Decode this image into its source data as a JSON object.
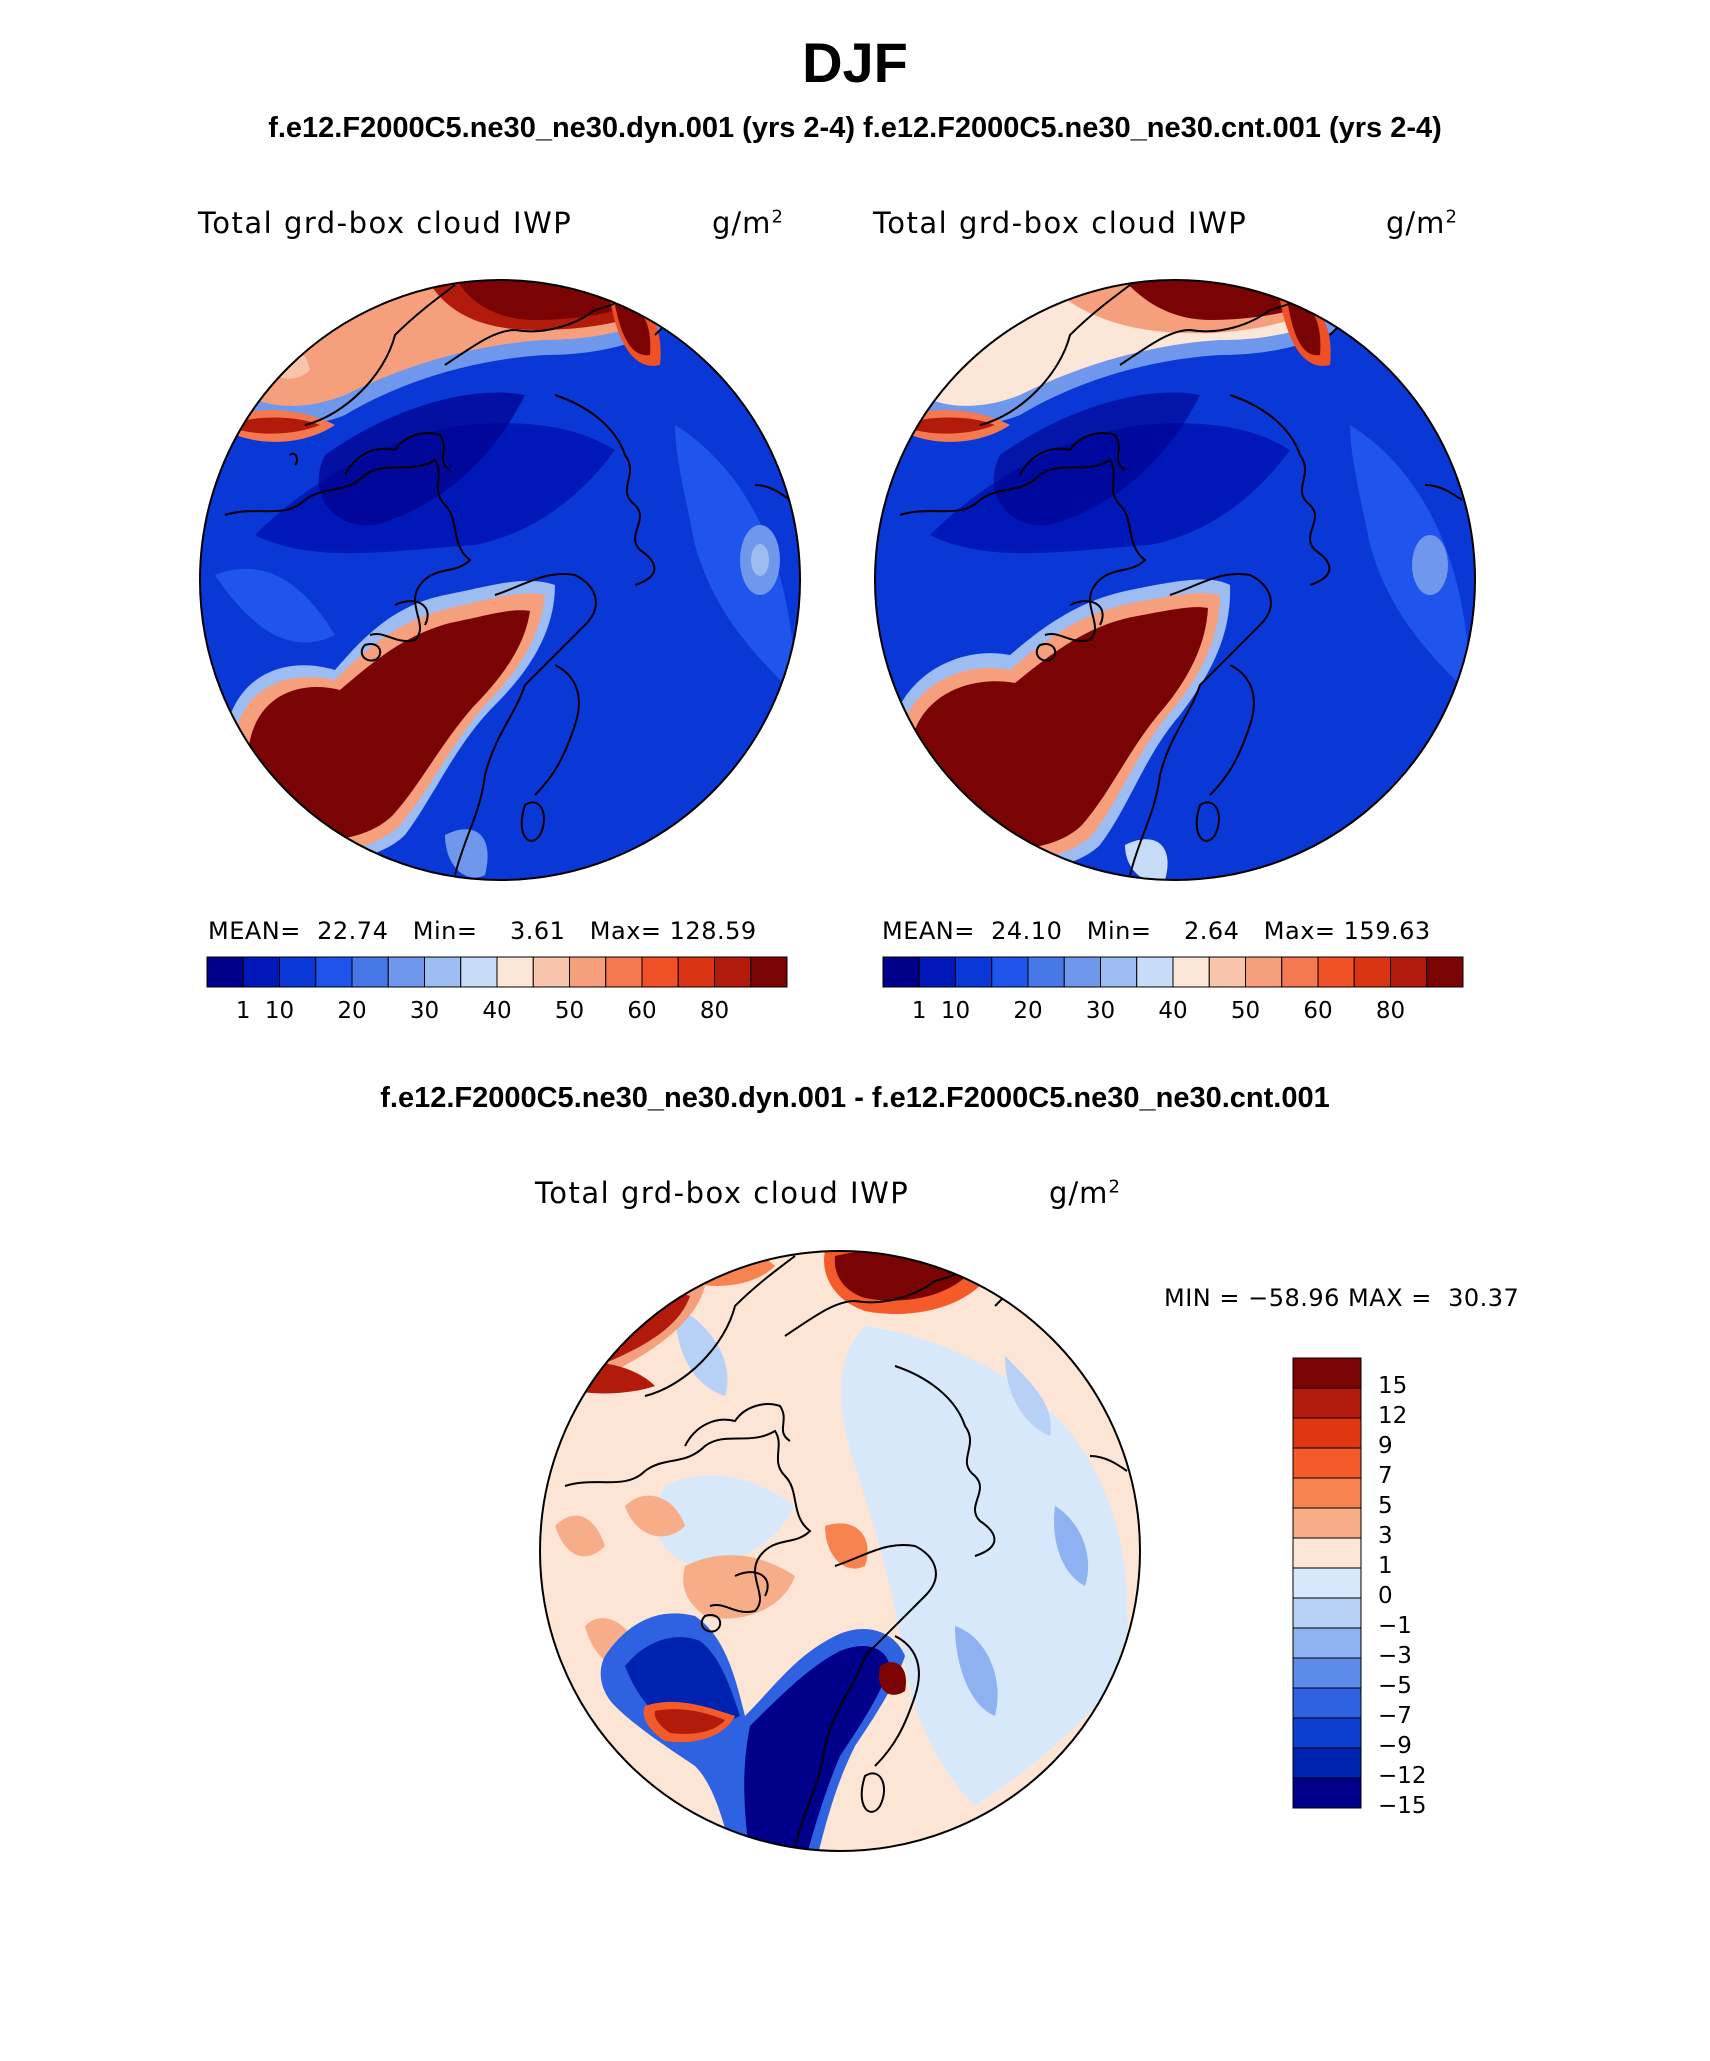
{
  "title": "DJF",
  "subtitle_top": "f.e12.F2000C5.ne30_ne30.dyn.001 (yrs 2-4)  f.e12.F2000C5.ne30_ne30.cnt.001 (yrs 2-4)",
  "subtitle_diff": "f.e12.F2000C5.ne30_ne30.dyn.001 - f.e12.F2000C5.ne30_ne30.cnt.001",
  "colors": {
    "seq": [
      "#00008b",
      "#0018b8",
      "#0a38d6",
      "#1f55ed",
      "#4678e8",
      "#6f98ec",
      "#9dbcf2",
      "#c6dcf8",
      "#fbe6d8",
      "#f8c4ab",
      "#f59f7d",
      "#f47850",
      "#ef5025",
      "#da3413",
      "#b21a0c",
      "#7a0403"
    ],
    "diff": [
      "#7a0403",
      "#b21a0c",
      "#df3711",
      "#f45a2a",
      "#f7834f",
      "#f7ad88",
      "#fde5d6",
      "#d7e8fb",
      "#b6d0f6",
      "#8eb2f1",
      "#5d8be9",
      "#2f62e1",
      "#0c3fd0",
      "#0022b0",
      "#00008b"
    ]
  },
  "chart_data": [
    {
      "type": "heatmap",
      "projection": "north-polar-stereographic",
      "title": "f.e12.F2000C5.ne30_ne30.dyn.001 (yrs 2-4)",
      "label": "Total grd-box cloud IWP",
      "units": "g/m",
      "units_sup": "2",
      "mean_label": "MEAN=",
      "mean": "22.74",
      "min_label": "Min=",
      "min": "3.61",
      "max_label": "Max=",
      "max": "128.59",
      "colorbar_ticks": [
        "1",
        "10",
        "20",
        "30",
        "40",
        "50",
        "60",
        "80"
      ],
      "levels": [
        1,
        5,
        10,
        15,
        20,
        25,
        30,
        35,
        40,
        45,
        50,
        55,
        60,
        70,
        80
      ]
    },
    {
      "type": "heatmap",
      "projection": "north-polar-stereographic",
      "title": "f.e12.F2000C5.ne30_ne30.cnt.001 (yrs 2-4)",
      "label": "Total grd-box cloud IWP",
      "units": "g/m",
      "units_sup": "2",
      "mean_label": "MEAN=",
      "mean": "24.10",
      "min_label": "Min=",
      "min": "2.64",
      "max_label": "Max=",
      "max": "159.63",
      "colorbar_ticks": [
        "1",
        "10",
        "20",
        "30",
        "40",
        "50",
        "60",
        "80"
      ],
      "levels": [
        1,
        5,
        10,
        15,
        20,
        25,
        30,
        35,
        40,
        45,
        50,
        55,
        60,
        70,
        80
      ]
    },
    {
      "type": "heatmap",
      "projection": "north-polar-stereographic",
      "title": "f.e12.F2000C5.ne30_ne30.dyn.001 - f.e12.F2000C5.ne30_ne30.cnt.001",
      "label": "Total grd-box cloud IWP",
      "units": "g/m",
      "units_sup": "2",
      "minmax_text": "MIN = −58.96 MAX =  30.37",
      "colorbar_ticks": [
        "15",
        "12",
        "9",
        "7",
        "5",
        "3",
        "1",
        "0",
        "−1",
        "−3",
        "−5",
        "−7",
        "−9",
        "−12",
        "−15"
      ]
    }
  ]
}
